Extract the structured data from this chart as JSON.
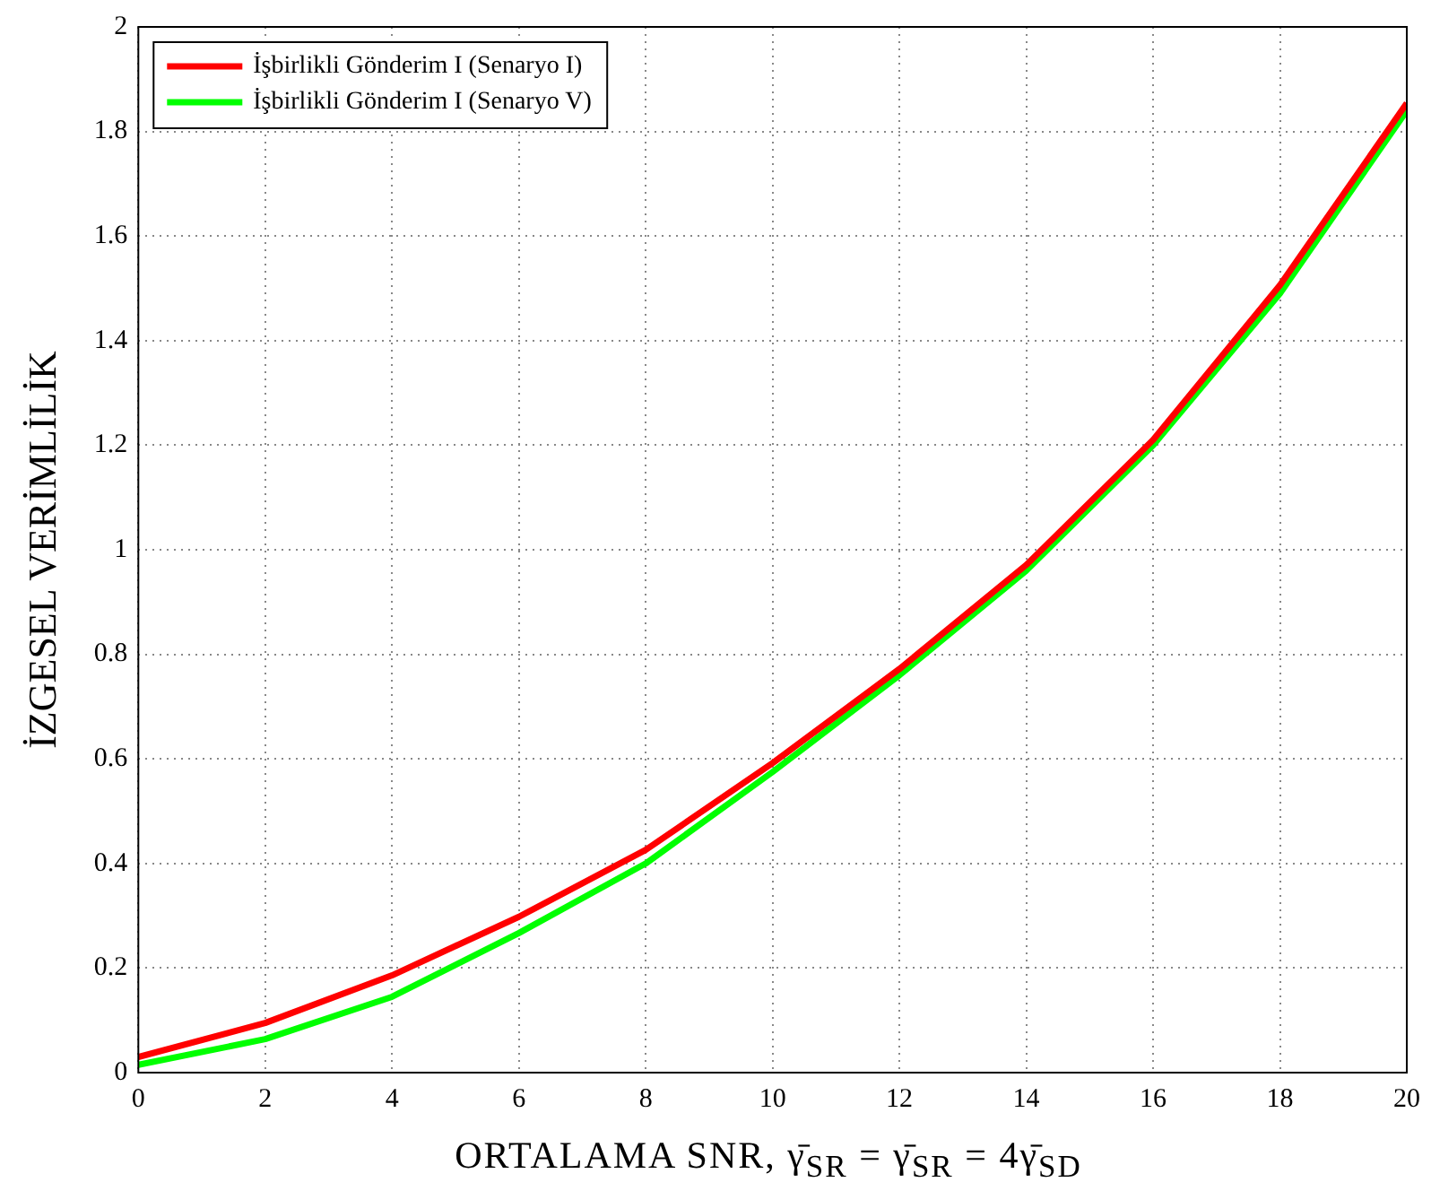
{
  "chart_data": {
    "type": "line",
    "xlabel": "ORTALAMA SNR, γ̄$_{SR}$ = γ̄$_{SR}$ = 4γ̄$_{SD}$",
    "ylabel": "İZGESEL VERİMLİLİK",
    "x": [
      0,
      2,
      4,
      6,
      8,
      10,
      12,
      14,
      16,
      18,
      20
    ],
    "series": [
      {
        "name": "İşbirlikli Gönderim I (Senaryo I)",
        "color": "#ff0000",
        "values": [
          0.03,
          0.095,
          0.186,
          0.298,
          0.426,
          0.592,
          0.772,
          0.971,
          1.21,
          1.506,
          1.854
        ]
      },
      {
        "name": "İşbirlikli Gönderim I (Senaryo V)",
        "color": "#00ff00",
        "values": [
          0.015,
          0.064,
          0.145,
          0.267,
          0.4,
          0.575,
          0.76,
          0.96,
          1.2,
          1.49,
          1.84
        ]
      }
    ],
    "xlim": [
      0,
      20
    ],
    "xticks": [
      0,
      2,
      4,
      6,
      8,
      10,
      12,
      14,
      16,
      18,
      20
    ],
    "ylim": [
      0,
      2
    ],
    "yticks": [
      0,
      0.2,
      0.4,
      0.6,
      0.8,
      1,
      1.2,
      1.4,
      1.6,
      1.8,
      2
    ],
    "grid": true,
    "legend": "top left",
    "marker": "none",
    "line_style": "solid"
  }
}
